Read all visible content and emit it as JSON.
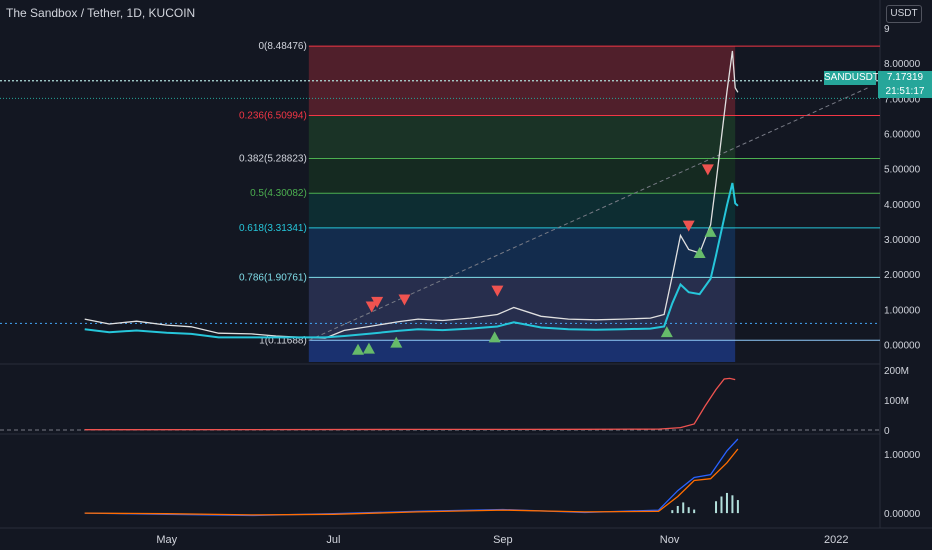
{
  "header": {
    "title": "The Sandbox / Tether, 1D, KUCOIN",
    "currency": "USDT"
  },
  "price_tag": {
    "symbol": "SANDUSDT",
    "price": "7.17319",
    "countdown": "21:51:17"
  },
  "colors": {
    "background": "#131722",
    "up": "#26a69a",
    "down": "#ef5350",
    "fib_red": "#f23645",
    "fib_green": "#4caf50",
    "fib_teal": "#089981",
    "fib_blue": "#2962ff"
  },
  "chart_data": [
    {
      "type": "line",
      "title": "The Sandbox / Tether, 1D, KUCOIN",
      "ylim": [
        -0.5,
        9
      ],
      "y_ticks": [
        "9",
        "8.00000",
        "7.00000",
        "6.00000",
        "5.00000",
        "4.00000",
        "3.00000",
        "2.00000",
        "1.00000",
        "0.00000"
      ],
      "y_tick_values": [
        9,
        8,
        7,
        6,
        5,
        4,
        3,
        2,
        1,
        0
      ],
      "x_ticks": [
        "May",
        "Jul",
        "Sep",
        "Nov",
        "2022"
      ],
      "x_tick_values": [
        "2021-05-01",
        "2021-07-01",
        "2021-09-01",
        "2021-11-01",
        "2022-01-01"
      ],
      "x_range": [
        "2021-03-01",
        "2022-01-17"
      ],
      "fib_levels": [
        {
          "label": "0(8.48476)",
          "value": 8.48476
        },
        {
          "label": "0.236(6.50994)",
          "value": 6.50994
        },
        {
          "label": "0.382(5.28823)",
          "value": 5.28823
        },
        {
          "label": "0.5(4.30082)",
          "value": 4.30082
        },
        {
          "label": "0.618(3.31341)",
          "value": 3.31341
        },
        {
          "label": "0.786(1.90761)",
          "value": 1.90761
        },
        {
          "label": "1(0.11688)",
          "value": 0.11688
        }
      ],
      "fib_start": "2021-06-22",
      "fib_end": "2021-11-25",
      "series": [
        {
          "x": [
            "2021-04-01",
            "2021-04-10",
            "2021-04-20",
            "2021-05-01",
            "2021-05-10",
            "2021-05-20",
            "2021-06-01",
            "2021-06-10",
            "2021-06-20",
            "2021-06-28",
            "2021-07-05",
            "2021-07-15",
            "2021-07-25",
            "2021-08-01",
            "2021-08-10",
            "2021-08-20",
            "2021-08-30",
            "2021-09-05",
            "2021-09-15",
            "2021-09-25",
            "2021-10-05",
            "2021-10-15",
            "2021-10-25",
            "2021-10-30",
            "2021-11-02",
            "2021-11-05",
            "2021-11-08",
            "2021-11-12",
            "2021-11-16",
            "2021-11-18",
            "2021-11-20",
            "2021-11-22",
            "2021-11-24",
            "2021-11-25",
            "2021-11-26"
          ],
          "values": [
            0.72,
            0.58,
            0.66,
            0.55,
            0.5,
            0.32,
            0.3,
            0.24,
            0.2,
            0.18,
            0.4,
            0.52,
            0.65,
            0.72,
            0.68,
            0.75,
            0.85,
            1.05,
            0.8,
            0.72,
            0.7,
            0.72,
            0.75,
            0.85,
            1.95,
            3.1,
            2.7,
            2.6,
            3.4,
            4.6,
            5.9,
            7.2,
            8.35,
            7.3,
            7.17
          ]
        }
      ],
      "current_price": 7.17319,
      "signals_sell": [
        {
          "x": "2021-07-15",
          "y": 1.05
        },
        {
          "x": "2021-07-17",
          "y": 1.18
        },
        {
          "x": "2021-07-27",
          "y": 1.25
        },
        {
          "x": "2021-08-30",
          "y": 1.5
        },
        {
          "x": "2021-11-08",
          "y": 3.35
        },
        {
          "x": "2021-11-15",
          "y": 4.95
        }
      ],
      "signals_buy": [
        {
          "x": "2021-07-10",
          "y": -0.15
        },
        {
          "x": "2021-07-14",
          "y": -0.12
        },
        {
          "x": "2021-07-24",
          "y": 0.05
        },
        {
          "x": "2021-08-29",
          "y": 0.2
        },
        {
          "x": "2021-10-31",
          "y": 0.35
        },
        {
          "x": "2021-11-12",
          "y": 2.6
        },
        {
          "x": "2021-11-16",
          "y": 3.2
        }
      ]
    },
    {
      "type": "line",
      "ylim": [
        0,
        200
      ],
      "y_ticks": [
        "200M",
        "100M",
        "0"
      ],
      "y_tick_values": [
        200,
        100,
        0
      ],
      "x": [
        "2021-04-01",
        "2021-06-01",
        "2021-08-01",
        "2021-10-01",
        "2021-10-28",
        "2021-11-05",
        "2021-11-10",
        "2021-11-14",
        "2021-11-18",
        "2021-11-21",
        "2021-11-23",
        "2021-11-25"
      ],
      "values": [
        1,
        1.5,
        2,
        2.5,
        3,
        8,
        20,
        80,
        135,
        170,
        172,
        168
      ],
      "baseline": 0
    },
    {
      "type": "line",
      "ylim": [
        -0.15,
        1.3
      ],
      "y_ticks": [
        "1.00000",
        "0.00000"
      ],
      "y_tick_values": [
        1,
        0
      ],
      "series": [
        {
          "x": [
            "2021-04-01",
            "2021-05-01",
            "2021-06-01",
            "2021-07-01",
            "2021-08-01",
            "2021-09-01",
            "2021-10-01",
            "2021-10-28",
            "2021-11-04",
            "2021-11-10",
            "2021-11-16",
            "2021-11-22",
            "2021-11-26"
          ],
          "values": [
            0.0,
            -0.02,
            -0.04,
            -0.01,
            0.03,
            0.06,
            0.01,
            0.05,
            0.38,
            0.6,
            0.65,
            1.05,
            1.25
          ]
        },
        {
          "x": [
            "2021-04-01",
            "2021-05-01",
            "2021-06-01",
            "2021-07-01",
            "2021-08-01",
            "2021-09-01",
            "2021-10-01",
            "2021-10-28",
            "2021-11-04",
            "2021-11-10",
            "2021-11-16",
            "2021-11-22",
            "2021-11-26"
          ],
          "values": [
            0.0,
            -0.01,
            -0.03,
            -0.02,
            0.02,
            0.05,
            0.02,
            0.03,
            0.28,
            0.55,
            0.58,
            0.85,
            1.08
          ]
        }
      ],
      "histogram": {
        "x": [
          "2021-11-02",
          "2021-11-04",
          "2021-11-06",
          "2021-11-08",
          "2021-11-10",
          "2021-11-18",
          "2021-11-20",
          "2021-11-22",
          "2021-11-24",
          "2021-11-26"
        ],
        "values": [
          0.05,
          0.12,
          0.18,
          0.1,
          0.06,
          0.2,
          0.28,
          0.34,
          0.3,
          0.22
        ]
      }
    }
  ]
}
